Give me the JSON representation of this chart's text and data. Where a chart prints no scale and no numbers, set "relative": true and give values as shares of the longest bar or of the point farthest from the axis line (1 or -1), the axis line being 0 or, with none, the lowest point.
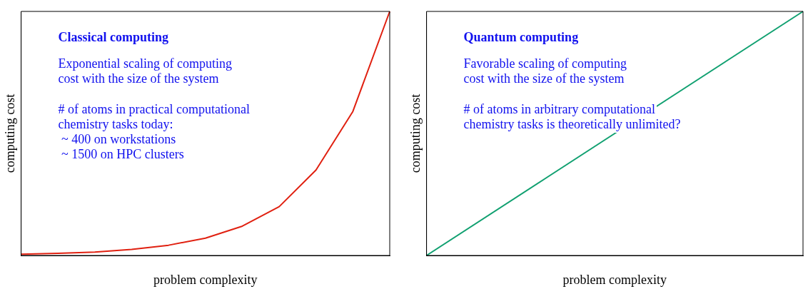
{
  "chart_data": [
    {
      "type": "line",
      "title": "Classical computing",
      "xlabel": "problem complexity",
      "ylabel": "computing cost",
      "relative": true,
      "categories": [
        null,
        null,
        null,
        null,
        null,
        null,
        null,
        null,
        null,
        null,
        null
      ],
      "series": [
        {
          "color": "#e02010",
          "values": [
            0.005,
            0.0085,
            0.014,
            0.025,
            0.042,
            0.071,
            0.12,
            0.2,
            0.35,
            0.59,
            1
          ]
        }
      ],
      "annotations": [
        "Exponential scaling of computing\ncost with the size of the system",
        "# of atoms in practical computational\nchemistry tasks today:\n ~ 400 on workstations\n ~ 1500 on HPC clusters"
      ],
      "grid": false,
      "legend": false,
      "marker": "none",
      "line_style": "solid"
    },
    {
      "type": "line",
      "title": "Quantum computing",
      "xlabel": "problem complexity",
      "ylabel": "computing cost",
      "relative": true,
      "categories": [
        null,
        null
      ],
      "series": [
        {
          "color": "#10a070",
          "values": [
            0,
            1
          ]
        }
      ],
      "annotations": [
        "Favorable scaling of computing\ncost with the size of the system",
        "# of atoms in arbitrary computational\nchemistry tasks is theoretically unlimited?"
      ],
      "grid": false,
      "legend": false,
      "marker": "none",
      "line_style": "solid"
    }
  ]
}
